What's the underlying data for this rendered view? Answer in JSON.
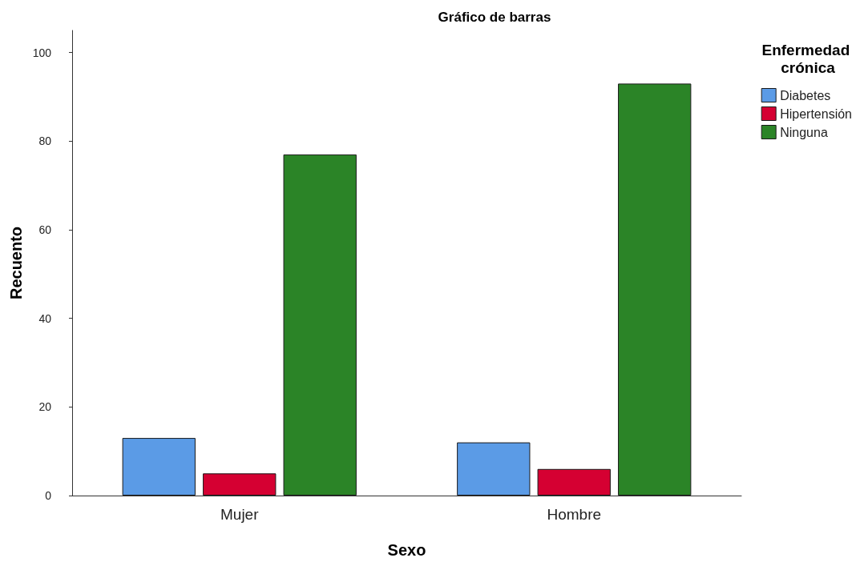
{
  "chart_data": {
    "type": "bar",
    "title": "Gráfico de barras",
    "xlabel": "Sexo",
    "ylabel": "Recuento",
    "legend_title": "Enfermedad crónica",
    "categories": [
      "Mujer",
      "Hombre"
    ],
    "series": [
      {
        "name": "Diabetes",
        "color": "#5b9be6",
        "values": [
          13,
          12
        ]
      },
      {
        "name": "Hipertensión",
        "color": "#d50032",
        "values": [
          5,
          6
        ]
      },
      {
        "name": "Ninguna",
        "color": "#2b8427",
        "values": [
          77,
          93
        ]
      }
    ],
    "ylim": [
      0,
      105
    ],
    "yticks": [
      0,
      20,
      40,
      60,
      80,
      100
    ],
    "grid": false,
    "legend": "top right"
  }
}
